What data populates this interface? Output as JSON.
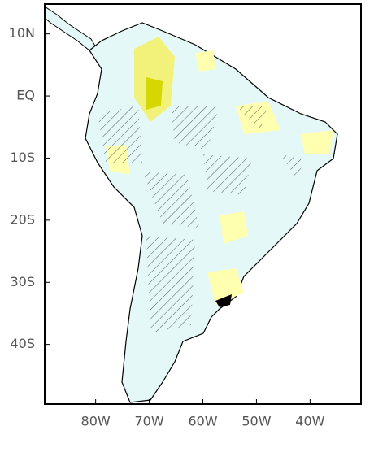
{
  "map": {
    "lon_range": [
      -89.5,
      -30.5
    ],
    "lat_range": [
      14.8,
      -49.6
    ],
    "lon_ticks": [
      {
        "value": -80,
        "label": "80W"
      },
      {
        "value": -70,
        "label": "70W"
      },
      {
        "value": -60,
        "label": "60W"
      },
      {
        "value": -50,
        "label": "50W"
      },
      {
        "value": -40,
        "label": "40W"
      }
    ],
    "lat_ticks": [
      {
        "value": 10,
        "label": "10N"
      },
      {
        "value": 0,
        "label": "EQ"
      },
      {
        "value": -10,
        "label": "10S"
      },
      {
        "value": -20,
        "label": "20S"
      },
      {
        "value": -30,
        "label": "30S"
      },
      {
        "value": -40,
        "label": "40S"
      }
    ]
  }
}
